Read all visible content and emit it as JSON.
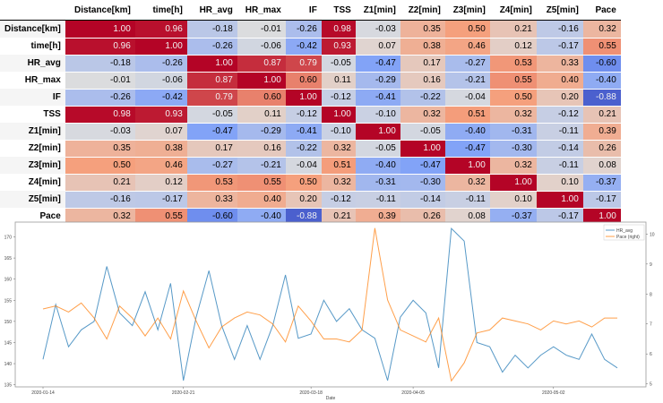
{
  "table": {
    "columns": [
      "Distance[km]",
      "time[h]",
      "HR_avg",
      "HR_max",
      "IF",
      "TSS",
      "Z1[min]",
      "Z2[min]",
      "Z3[min]",
      "Z4[min]",
      "Z5[min]",
      "Pace"
    ],
    "rows": [
      {
        "label": "Distance[km]",
        "values": [
          "1.00",
          "0.96",
          "-0.18",
          "-0.01",
          "-0.26",
          "0.98",
          "-0.03",
          "0.35",
          "0.50",
          "0.21",
          "-0.16",
          "0.32"
        ]
      },
      {
        "label": "time[h]",
        "values": [
          "0.96",
          "1.00",
          "-0.26",
          "-0.06",
          "-0.42",
          "0.93",
          "0.07",
          "0.38",
          "0.46",
          "0.12",
          "-0.17",
          "0.55"
        ]
      },
      {
        "label": "HR_avg",
        "values": [
          "-0.18",
          "-0.26",
          "1.00",
          "0.87",
          "0.79",
          "-0.05",
          "-0.47",
          "0.17",
          "-0.27",
          "0.53",
          "0.33",
          "-0.60"
        ]
      },
      {
        "label": "HR_max",
        "values": [
          "-0.01",
          "-0.06",
          "0.87",
          "1.00",
          "0.60",
          "0.11",
          "-0.29",
          "0.16",
          "-0.21",
          "0.55",
          "0.40",
          "-0.40"
        ]
      },
      {
        "label": "IF",
        "values": [
          "-0.26",
          "-0.42",
          "0.79",
          "0.60",
          "1.00",
          "-0.12",
          "-0.41",
          "-0.22",
          "-0.04",
          "0.50",
          "0.20",
          "-0.88"
        ]
      },
      {
        "label": "TSS",
        "values": [
          "0.98",
          "0.93",
          "-0.05",
          "0.11",
          "-0.12",
          "1.00",
          "-0.10",
          "0.32",
          "0.51",
          "0.32",
          "-0.12",
          "0.21"
        ]
      },
      {
        "label": "Z1[min]",
        "values": [
          "-0.03",
          "0.07",
          "-0.47",
          "-0.29",
          "-0.41",
          "-0.10",
          "1.00",
          "-0.05",
          "-0.40",
          "-0.31",
          "-0.11",
          "0.39"
        ]
      },
      {
        "label": "Z2[min]",
        "values": [
          "0.35",
          "0.38",
          "0.17",
          "0.16",
          "-0.22",
          "0.32",
          "-0.05",
          "1.00",
          "-0.47",
          "-0.30",
          "-0.14",
          "0.26"
        ]
      },
      {
        "label": "Z3[min]",
        "values": [
          "0.50",
          "0.46",
          "-0.27",
          "-0.21",
          "-0.04",
          "0.51",
          "-0.40",
          "-0.47",
          "1.00",
          "0.32",
          "-0.11",
          "0.08"
        ]
      },
      {
        "label": "Z4[min]",
        "values": [
          "0.21",
          "0.12",
          "0.53",
          "0.55",
          "0.50",
          "0.32",
          "-0.31",
          "-0.30",
          "0.32",
          "1.00",
          "0.10",
          "-0.37"
        ]
      },
      {
        "label": "Z5[min]",
        "values": [
          "-0.16",
          "-0.17",
          "0.33",
          "0.40",
          "0.20",
          "-0.12",
          "-0.11",
          "-0.14",
          "-0.11",
          "0.10",
          "1.00",
          "-0.17"
        ]
      },
      {
        "label": "Pace",
        "values": [
          "0.32",
          "0.55",
          "-0.60",
          "-0.40",
          "-0.88",
          "0.21",
          "0.39",
          "0.26",
          "0.08",
          "-0.37",
          "-0.17",
          "1.00"
        ]
      }
    ]
  },
  "chart_data": {
    "type": "line",
    "xlabel": "Date",
    "x_tick_labels": [
      "2020-01-14",
      "2020-02-21",
      "2020-03-18",
      "2020-04-05",
      "2020-05-02"
    ],
    "x_tick_index": [
      0,
      11,
      21,
      29,
      40
    ],
    "y_left": {
      "ticks": [
        135,
        140,
        145,
        150,
        155,
        160,
        165,
        170
      ],
      "ylim": [
        134.5,
        173.5
      ]
    },
    "y_right": {
      "ticks": [
        5,
        6,
        7,
        8,
        9,
        10
      ],
      "ylim": [
        4.9,
        10.4
      ]
    },
    "legend": {
      "position": "top-right",
      "entries": [
        "HR_avg",
        "Pace (right)"
      ]
    },
    "series": [
      {
        "name": "HR_avg",
        "axis": "left",
        "color": "#1f77b4",
        "values": [
          141,
          154,
          144,
          148,
          150,
          163,
          152,
          149,
          157,
          148,
          159,
          136,
          151,
          162,
          149,
          141,
          149,
          141,
          149,
          161,
          146,
          147,
          155,
          150,
          153,
          148,
          146,
          136,
          151,
          155,
          152,
          139,
          172,
          169,
          145,
          144,
          138,
          142,
          139,
          142,
          144,
          142,
          141,
          147,
          141,
          139
        ]
      },
      {
        "name": "Pace (right)",
        "axis": "right",
        "color": "#ff7f0e",
        "values": [
          7.5,
          7.6,
          7.4,
          7.7,
          7.2,
          6.5,
          7.6,
          7.2,
          6.6,
          7.2,
          6.5,
          8.1,
          7.1,
          6.2,
          6.9,
          7.2,
          7.4,
          7.3,
          7.0,
          6.4,
          7.6,
          7.1,
          6.5,
          6.5,
          6.4,
          6.8,
          10.2,
          7.8,
          6.8,
          6.6,
          6.4,
          7.2,
          5.1,
          5.7,
          6.7,
          6.8,
          7.2,
          7.1,
          7.0,
          6.8,
          7.1,
          7.0,
          7.1,
          6.9,
          7.2,
          7.2
        ]
      }
    ]
  }
}
